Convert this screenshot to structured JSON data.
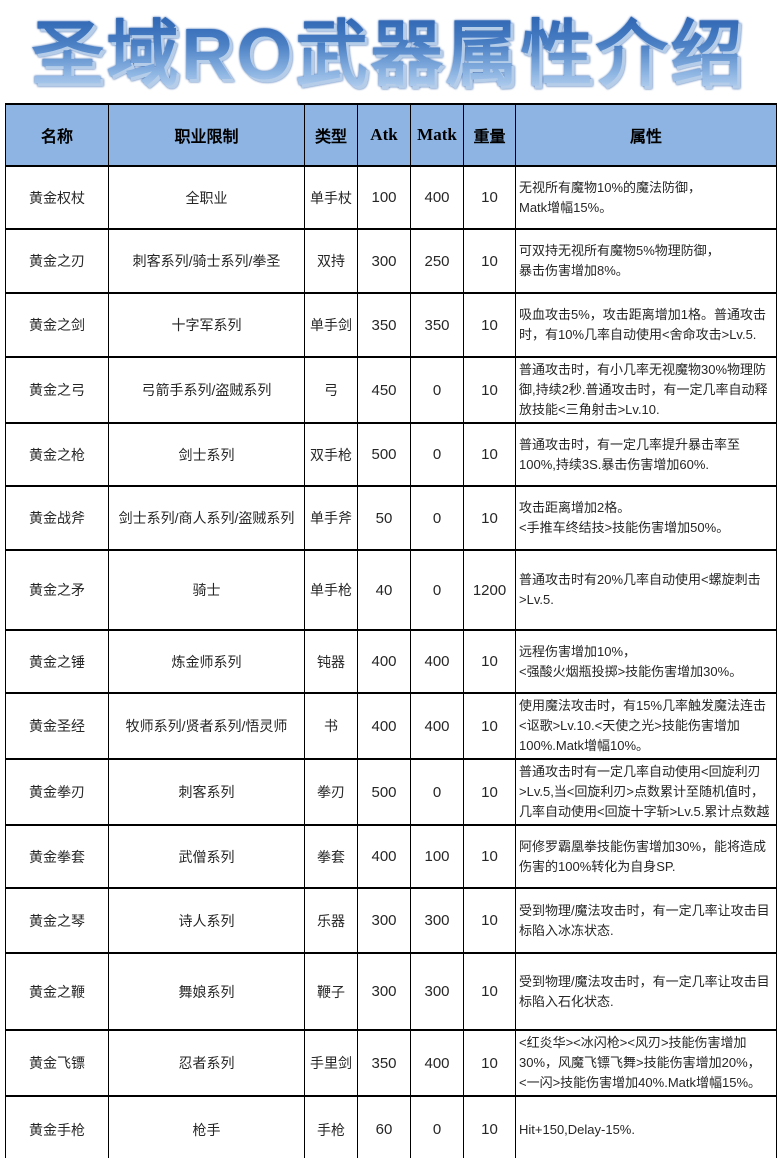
{
  "title": "圣域RO武器属性介绍",
  "colors": {
    "header_bg": "#8db4e2",
    "border": "#000000",
    "title_gradient_top": "#2f66b3",
    "title_gradient_bottom": "#d4e4f7",
    "title_shadow": "#b5cde9"
  },
  "table": {
    "headers": [
      "名称",
      "职业限制",
      "类型",
      "Atk",
      "Matk",
      "重量",
      "属性"
    ],
    "rows": [
      {
        "name": "黄金权杖",
        "class_limit": "全职业",
        "type": "单手杖",
        "atk": "100",
        "matk": "400",
        "weight": "10",
        "attributes": "无视所有魔物10%的魔法防御，\nMatk增幅15%。"
      },
      {
        "name": "黄金之刃",
        "class_limit": "刺客系列/骑士系列/拳圣",
        "type": "双持",
        "atk": "300",
        "matk": "250",
        "weight": "10",
        "attributes": "可双持无视所有魔物5%物理防御，\n暴击伤害增加8%。"
      },
      {
        "name": "黄金之剑",
        "class_limit": "十字军系列",
        "type": "单手剑",
        "atk": "350",
        "matk": "350",
        "weight": "10",
        "attributes": "吸血攻击5%，攻击距离增加1格。普通攻击\n时，有10%几率自动使用<舍命攻击>Lv.5."
      },
      {
        "name": "黄金之弓",
        "class_limit": "弓箭手系列/盗贼系列",
        "type": "弓",
        "atk": "450",
        "matk": "0",
        "weight": "10",
        "attributes": "普通攻击时，有小几率无视魔物30%物理防\n御,持续2秒.普通攻击时，有一定几率自动释\n放技能<三角射击>Lv.10."
      },
      {
        "name": "黄金之枪",
        "class_limit": "剑士系列",
        "type": "双手枪",
        "atk": "500",
        "matk": "0",
        "weight": "10",
        "attributes": "普通攻击时，有一定几率提升暴击率至\n100%,持续3S.暴击伤害增加60%."
      },
      {
        "name": "黄金战斧",
        "class_limit": "剑士系列/商人系列/盗贼系列",
        "type": "单手斧",
        "atk": "50",
        "matk": "0",
        "weight": "10",
        "attributes": "攻击距离增加2格。\n<手推车终结技>技能伤害增加50%。"
      },
      {
        "name": "黄金之矛",
        "class_limit": "骑士",
        "type": "单手枪",
        "atk": "40",
        "matk": "0",
        "weight": "1200",
        "attributes": "普通攻击时有20%几率自动使用<螺旋刺击\n>Lv.5."
      },
      {
        "name": "黄金之锤",
        "class_limit": "炼金师系列",
        "type": "钝器",
        "atk": "400",
        "matk": "400",
        "weight": "10",
        "attributes": "远程伤害增加10%，\n<强酸火烟瓶投掷>技能伤害增加30%。"
      },
      {
        "name": "黄金圣经",
        "class_limit": "牧师系列/贤者系列/悟灵师",
        "type": "书",
        "atk": "400",
        "matk": "400",
        "weight": "10",
        "attributes": "使用魔法攻击时，有15%几率触发魔法连击\n<讴歌>Lv.10.<天使之光>技能伤害增加\n100%.Matk增幅10%。"
      },
      {
        "name": "黄金拳刃",
        "class_limit": "刺客系列",
        "type": "拳刃",
        "atk": "500",
        "matk": "0",
        "weight": "10",
        "attributes": "普通攻击时有一定几率自动使用<回旋利刃\n>Lv.5,当<回旋利刃>点数累计至随机值时，\n几率自动使用<回旋十字斩>Lv.5.累计点数越"
      },
      {
        "name": "黄金拳套",
        "class_limit": "武僧系列",
        "type": "拳套",
        "atk": "400",
        "matk": "100",
        "weight": "10",
        "attributes": "阿修罗霸凰拳技能伤害增加30%，能将造成\n伤害的100%转化为自身SP."
      },
      {
        "name": "黄金之琴",
        "class_limit": "诗人系列",
        "type": "乐器",
        "atk": "300",
        "matk": "300",
        "weight": "10",
        "attributes": "受到物理/魔法攻击时，有一定几率让攻击目\n标陷入冰冻状态."
      },
      {
        "name": "黄金之鞭",
        "class_limit": "舞娘系列",
        "type": "鞭子",
        "atk": "300",
        "matk": "300",
        "weight": "10",
        "attributes": "受到物理/魔法攻击时，有一定几率让攻击目\n标陷入石化状态."
      },
      {
        "name": "黄金飞镖",
        "class_limit": "忍者系列",
        "type": "手里剑",
        "atk": "350",
        "matk": "400",
        "weight": "10",
        "attributes": "<红炎华><冰闪枪><风刃>技能伤害增加\n30%，风魔飞镖飞舞>技能伤害增加20%，\n<一闪>技能伤害增加40%.Matk增幅15%。"
      },
      {
        "name": "黄金手枪",
        "class_limit": "枪手",
        "type": "手枪",
        "atk": "60",
        "matk": "0",
        "weight": "10",
        "attributes": "Hit+150,Delay-15%."
      }
    ]
  }
}
